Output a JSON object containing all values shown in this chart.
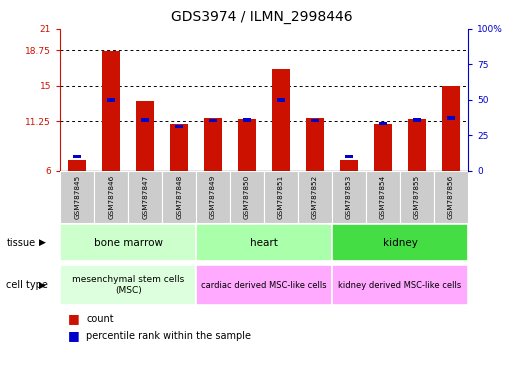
{
  "title": "GDS3974 / ILMN_2998446",
  "samples": [
    "GSM787845",
    "GSM787846",
    "GSM787847",
    "GSM787848",
    "GSM787849",
    "GSM787850",
    "GSM787851",
    "GSM787852",
    "GSM787853",
    "GSM787854",
    "GSM787855",
    "GSM787856"
  ],
  "bar_values": [
    7.2,
    18.7,
    13.4,
    10.9,
    11.6,
    11.5,
    16.8,
    11.6,
    7.2,
    11.0,
    11.5,
    15.0
  ],
  "blue_values": [
    7.5,
    13.5,
    11.4,
    10.7,
    11.3,
    11.35,
    13.5,
    11.3,
    7.5,
    11.0,
    11.4,
    11.6
  ],
  "y_min": 6,
  "y_max": 21,
  "y_ticks": [
    6,
    11.25,
    15,
    18.75,
    21
  ],
  "y_tick_labels": [
    "6",
    "11.25",
    "15",
    "18.75",
    "21"
  ],
  "y2_ticks": [
    0,
    25,
    50,
    75,
    100
  ],
  "y2_tick_labels": [
    "0",
    "25",
    "50",
    "75",
    "100%"
  ],
  "bar_color": "#cc1100",
  "blue_color": "#0000cc",
  "title_fontsize": 10,
  "tissue_groups": [
    {
      "label": "bone marrow",
      "start": 0,
      "end": 3,
      "color": "#ccffcc"
    },
    {
      "label": "heart",
      "start": 4,
      "end": 7,
      "color": "#aaffaa"
    },
    {
      "label": "kidney",
      "start": 8,
      "end": 11,
      "color": "#44dd44"
    }
  ],
  "cell_type_groups": [
    {
      "label": "mesenchymal stem cells\n(MSC)",
      "start": 0,
      "end": 3,
      "color": "#ddffdd"
    },
    {
      "label": "cardiac derived MSC-like cells",
      "start": 4,
      "end": 7,
      "color": "#ffaaff"
    },
    {
      "label": "kidney derived MSC-like cells",
      "start": 8,
      "end": 11,
      "color": "#ffaaff"
    }
  ],
  "tissue_label": "tissue",
  "cell_type_label": "cell type",
  "legend_count": "count",
  "legend_percentile": "percentile rank within the sample",
  "sample_bg_color": "#cccccc",
  "tick_label_color_left": "#cc1100",
  "tick_label_color_right": "#0000cc"
}
